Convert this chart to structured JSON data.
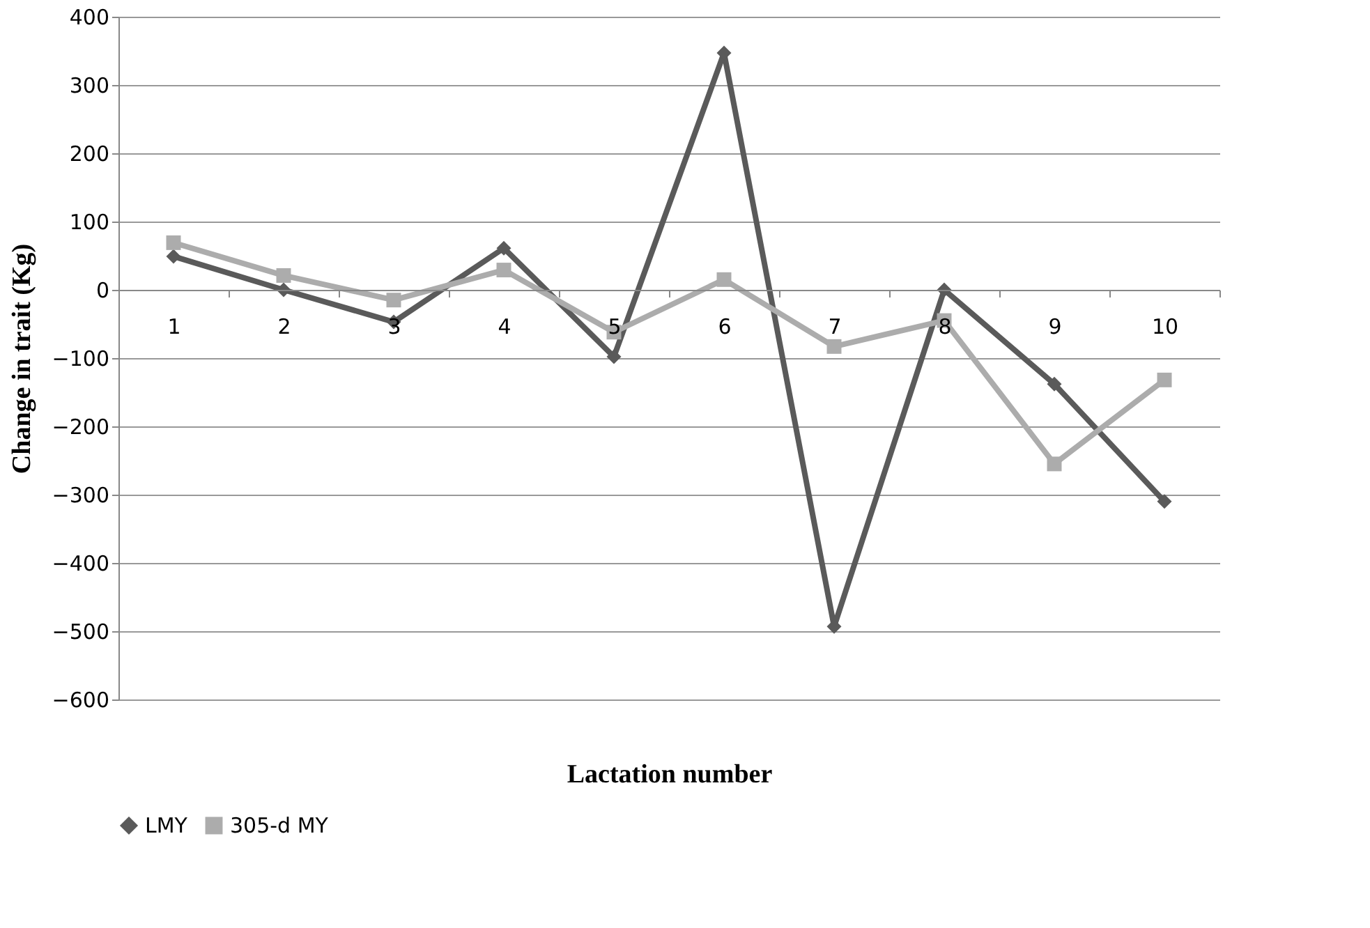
{
  "chart_data": {
    "type": "line",
    "xlabel": "Lactation  number",
    "ylabel": "Change in trait (Kg)",
    "categories": [
      "1",
      "2",
      "3",
      "4",
      "5",
      "6",
      "7",
      "8",
      "9",
      "10"
    ],
    "series": [
      {
        "name": "LMY",
        "color": "#5a5a5a",
        "marker": "diamond",
        "values": [
          49,
          0,
          -47,
          61,
          -98,
          347,
          -493,
          0,
          -138,
          -310
        ]
      },
      {
        "name": "305-d MY",
        "color": "#acacac",
        "marker": "square",
        "values": [
          69,
          21,
          -15,
          29,
          -62,
          15,
          -83,
          -45,
          -255,
          -132
        ]
      }
    ],
    "ylim": [
      -600,
      400
    ],
    "yticks": [
      -600,
      -500,
      -400,
      -300,
      -200,
      -100,
      0,
      100,
      200,
      300,
      400
    ],
    "grid": "y",
    "legend": "bottom",
    "line_style": "solid"
  }
}
